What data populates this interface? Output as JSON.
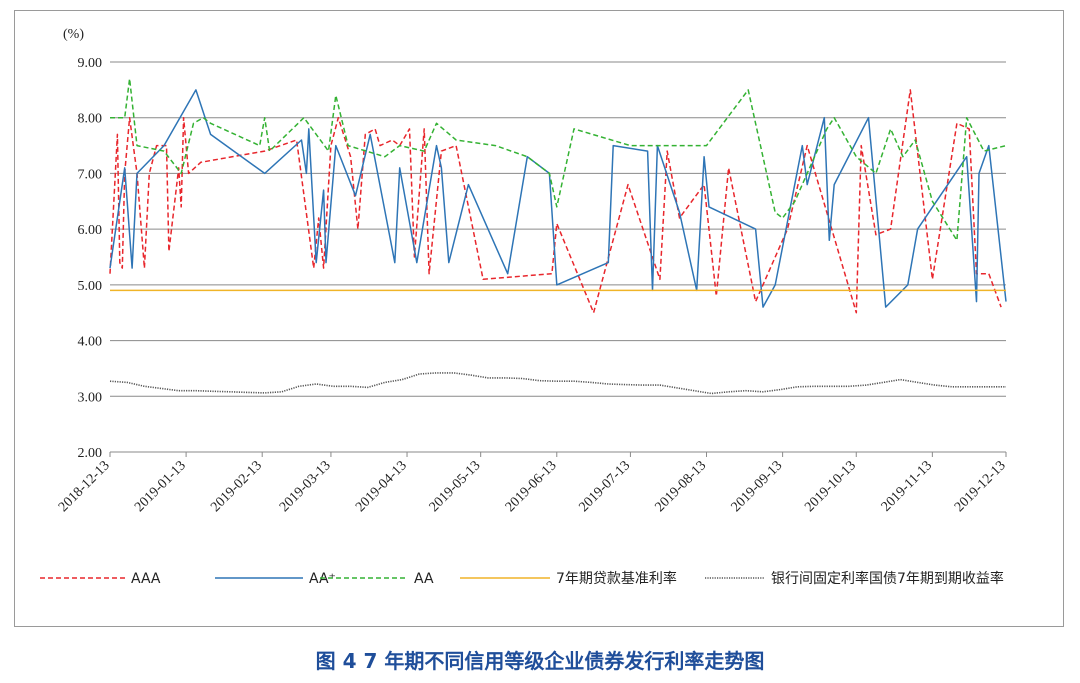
{
  "caption": "图 4  7 年期不同信用等级企业债券发行利率走势图",
  "chart_data": {
    "type": "line",
    "y_unit": "(%)",
    "ylim": [
      2.0,
      9.0
    ],
    "yticks": [
      "2.00",
      "3.00",
      "4.00",
      "5.00",
      "6.00",
      "7.00",
      "8.00",
      "9.00"
    ],
    "grid": "horizontal",
    "legend_position": "bottom",
    "xlim": [
      "2018-12-13",
      "2019-12-13"
    ],
    "xticks": [
      "2018-12-13",
      "2019-01-13",
      "2019-02-13",
      "2019-03-13",
      "2019-04-13",
      "2019-05-13",
      "2019-06-13",
      "2019-07-13",
      "2019-08-13",
      "2019-09-13",
      "2019-10-13",
      "2019-11-13",
      "2019-12-13"
    ],
    "series": [
      {
        "name": "AAA",
        "color": "#e8262c",
        "style": "dashed",
        "points": [
          [
            "2018-12-13",
            5.2
          ],
          [
            "2018-12-16",
            7.7
          ],
          [
            "2018-12-17",
            5.4
          ],
          [
            "2018-12-18",
            5.3
          ],
          [
            "2018-12-19",
            7.0
          ],
          [
            "2018-12-21",
            8.0
          ],
          [
            "2018-12-24",
            7.0
          ],
          [
            "2018-12-27",
            5.3
          ],
          [
            "2018-12-29",
            7.0
          ],
          [
            "2019-01-01",
            7.5
          ],
          [
            "2019-01-05",
            7.5
          ],
          [
            "2019-01-06",
            5.6
          ],
          [
            "2019-01-10",
            7.1
          ],
          [
            "2019-01-11",
            6.4
          ],
          [
            "2019-01-12",
            8.0
          ],
          [
            "2019-01-14",
            7.0
          ],
          [
            "2019-01-19",
            7.2
          ],
          [
            "2019-02-14",
            7.4
          ],
          [
            "2019-02-27",
            7.6
          ],
          [
            "2019-03-06",
            5.3
          ],
          [
            "2019-03-08",
            6.2
          ],
          [
            "2019-03-10",
            5.3
          ],
          [
            "2019-03-13",
            7.5
          ],
          [
            "2019-03-16",
            8.0
          ],
          [
            "2019-03-21",
            7.3
          ],
          [
            "2019-03-24",
            6.0
          ],
          [
            "2019-03-27",
            7.7
          ],
          [
            "2019-03-31",
            7.8
          ],
          [
            "2019-04-02",
            7.5
          ],
          [
            "2019-04-07",
            7.6
          ],
          [
            "2019-04-10",
            7.5
          ],
          [
            "2019-04-14",
            7.8
          ],
          [
            "2019-04-16",
            5.5
          ],
          [
            "2019-04-20",
            7.8
          ],
          [
            "2019-04-22",
            5.2
          ],
          [
            "2019-04-27",
            7.4
          ],
          [
            "2019-05-03",
            7.5
          ],
          [
            "2019-05-14",
            5.1
          ],
          [
            "2019-06-11",
            5.2
          ],
          [
            "2019-06-13",
            6.1
          ],
          [
            "2019-06-28",
            4.5
          ],
          [
            "2019-07-12",
            6.8
          ],
          [
            "2019-07-25",
            5.1
          ],
          [
            "2019-07-28",
            7.4
          ],
          [
            "2019-08-02",
            6.2
          ],
          [
            "2019-08-12",
            6.8
          ],
          [
            "2019-08-17",
            4.8
          ],
          [
            "2019-08-22",
            7.1
          ],
          [
            "2019-09-02",
            4.7
          ],
          [
            "2019-09-15",
            6.0
          ],
          [
            "2019-09-23",
            7.5
          ],
          [
            "2019-10-13",
            4.5
          ],
          [
            "2019-10-15",
            7.5
          ],
          [
            "2019-10-21",
            5.9
          ],
          [
            "2019-10-27",
            6.0
          ],
          [
            "2019-11-04",
            8.5
          ],
          [
            "2019-11-13",
            5.1
          ],
          [
            "2019-11-23",
            7.9
          ],
          [
            "2019-11-28",
            7.8
          ],
          [
            "2019-12-01",
            5.2
          ],
          [
            "2019-12-06",
            5.2
          ],
          [
            "2019-12-11",
            4.6
          ]
        ]
      },
      {
        "name": "AA⁺",
        "color": "#2e75b6",
        "style": "solid",
        "points": [
          [
            "2018-12-13",
            5.3
          ],
          [
            "2018-12-19",
            7.1
          ],
          [
            "2018-12-22",
            5.3
          ],
          [
            "2018-12-24",
            7.0
          ],
          [
            "2019-01-04",
            7.5
          ],
          [
            "2019-01-17",
            8.5
          ],
          [
            "2019-01-23",
            7.7
          ],
          [
            "2019-02-14",
            7.0
          ],
          [
            "2019-03-01",
            7.6
          ],
          [
            "2019-03-03",
            7.0
          ],
          [
            "2019-03-04",
            7.8
          ],
          [
            "2019-03-07",
            5.4
          ],
          [
            "2019-03-10",
            6.7
          ],
          [
            "2019-03-11",
            5.4
          ],
          [
            "2019-03-15",
            7.5
          ],
          [
            "2019-03-23",
            6.6
          ],
          [
            "2019-03-29",
            7.7
          ],
          [
            "2019-04-08",
            5.4
          ],
          [
            "2019-04-10",
            7.1
          ],
          [
            "2019-04-17",
            5.4
          ],
          [
            "2019-04-25",
            7.5
          ],
          [
            "2019-04-27",
            7.1
          ],
          [
            "2019-04-30",
            5.4
          ],
          [
            "2019-05-08",
            6.8
          ],
          [
            "2019-05-24",
            5.2
          ],
          [
            "2019-06-01",
            7.3
          ],
          [
            "2019-06-10",
            7.0
          ],
          [
            "2019-06-13",
            5.0
          ],
          [
            "2019-07-04",
            5.4
          ],
          [
            "2019-07-06",
            7.5
          ],
          [
            "2019-07-20",
            7.4
          ],
          [
            "2019-07-22",
            4.9
          ],
          [
            "2019-07-24",
            7.5
          ],
          [
            "2019-08-02",
            6.3
          ],
          [
            "2019-08-09",
            4.9
          ],
          [
            "2019-08-12",
            7.3
          ],
          [
            "2019-08-14",
            6.4
          ],
          [
            "2019-09-02",
            6.0
          ],
          [
            "2019-09-05",
            4.6
          ],
          [
            "2019-09-10",
            5.0
          ],
          [
            "2019-09-21",
            7.5
          ],
          [
            "2019-09-23",
            6.8
          ],
          [
            "2019-09-30",
            8.0
          ],
          [
            "2019-10-02",
            5.8
          ],
          [
            "2019-10-04",
            6.8
          ],
          [
            "2019-10-18",
            8.0
          ],
          [
            "2019-10-25",
            4.6
          ],
          [
            "2019-11-03",
            5.0
          ],
          [
            "2019-11-07",
            6.0
          ],
          [
            "2019-11-27",
            7.3
          ],
          [
            "2019-12-01",
            4.7
          ],
          [
            "2019-12-02",
            7.0
          ],
          [
            "2019-12-06",
            7.5
          ],
          [
            "2019-12-13",
            4.7
          ]
        ]
      },
      {
        "name": "AA",
        "color": "#34b233",
        "style": "dashed",
        "points": [
          [
            "2018-12-13",
            8.0
          ],
          [
            "2018-12-19",
            8.0
          ],
          [
            "2018-12-21",
            8.7
          ],
          [
            "2018-12-24",
            7.5
          ],
          [
            "2019-01-04",
            7.4
          ],
          [
            "2019-01-11",
            7.0
          ],
          [
            "2019-01-16",
            7.9
          ],
          [
            "2019-01-20",
            8.0
          ],
          [
            "2019-01-23",
            7.9
          ],
          [
            "2019-02-12",
            7.5
          ],
          [
            "2019-02-14",
            8.0
          ],
          [
            "2019-02-16",
            7.4
          ],
          [
            "2019-03-02",
            8.0
          ],
          [
            "2019-03-12",
            7.4
          ],
          [
            "2019-03-15",
            8.4
          ],
          [
            "2019-03-20",
            7.5
          ],
          [
            "2019-04-04",
            7.3
          ],
          [
            "2019-04-10",
            7.5
          ],
          [
            "2019-04-20",
            7.4
          ],
          [
            "2019-04-25",
            7.9
          ],
          [
            "2019-05-03",
            7.6
          ],
          [
            "2019-05-19",
            7.5
          ],
          [
            "2019-06-01",
            7.3
          ],
          [
            "2019-06-10",
            7.0
          ],
          [
            "2019-06-13",
            6.4
          ],
          [
            "2019-06-20",
            7.8
          ],
          [
            "2019-07-13",
            7.5
          ],
          [
            "2019-08-13",
            7.5
          ],
          [
            "2019-08-30",
            8.5
          ],
          [
            "2019-09-10",
            6.3
          ],
          [
            "2019-09-13",
            6.2
          ],
          [
            "2019-09-18",
            6.5
          ],
          [
            "2019-10-01",
            7.8
          ],
          [
            "2019-10-04",
            8.0
          ],
          [
            "2019-10-13",
            7.3
          ],
          [
            "2019-10-21",
            7.0
          ],
          [
            "2019-10-27",
            7.8
          ],
          [
            "2019-11-01",
            7.3
          ],
          [
            "2019-11-06",
            7.6
          ],
          [
            "2019-11-13",
            6.5
          ],
          [
            "2019-11-23",
            5.8
          ],
          [
            "2019-11-27",
            8.0
          ],
          [
            "2019-12-04",
            7.4
          ],
          [
            "2019-12-13",
            7.5
          ]
        ]
      },
      {
        "name": "7年期贷款基准利率",
        "color": "#f0b428",
        "style": "solid",
        "points": [
          [
            "2018-12-13",
            4.9
          ],
          [
            "2019-12-13",
            4.9
          ]
        ]
      },
      {
        "name": "银行间固定利率国债7年期到期收益率",
        "color": "#555555",
        "style": "dotted",
        "points": [
          [
            "2018-12-13",
            3.27
          ],
          [
            "2018-12-20",
            3.25
          ],
          [
            "2018-12-27",
            3.18
          ],
          [
            "2019-01-03",
            3.14
          ],
          [
            "2019-01-10",
            3.1
          ],
          [
            "2019-01-17",
            3.1
          ],
          [
            "2019-01-24",
            3.09
          ],
          [
            "2019-01-31",
            3.08
          ],
          [
            "2019-02-07",
            3.07
          ],
          [
            "2019-02-14",
            3.06
          ],
          [
            "2019-02-21",
            3.08
          ],
          [
            "2019-02-28",
            3.18
          ],
          [
            "2019-03-07",
            3.22
          ],
          [
            "2019-03-14",
            3.18
          ],
          [
            "2019-03-21",
            3.18
          ],
          [
            "2019-03-28",
            3.16
          ],
          [
            "2019-04-04",
            3.25
          ],
          [
            "2019-04-11",
            3.3
          ],
          [
            "2019-04-18",
            3.4
          ],
          [
            "2019-04-25",
            3.42
          ],
          [
            "2019-05-02",
            3.42
          ],
          [
            "2019-05-09",
            3.38
          ],
          [
            "2019-05-16",
            3.33
          ],
          [
            "2019-05-23",
            3.33
          ],
          [
            "2019-05-30",
            3.32
          ],
          [
            "2019-06-06",
            3.28
          ],
          [
            "2019-06-13",
            3.27
          ],
          [
            "2019-06-20",
            3.27
          ],
          [
            "2019-06-27",
            3.25
          ],
          [
            "2019-07-04",
            3.22
          ],
          [
            "2019-07-11",
            3.21
          ],
          [
            "2019-07-18",
            3.2
          ],
          [
            "2019-07-25",
            3.2
          ],
          [
            "2019-08-01",
            3.15
          ],
          [
            "2019-08-08",
            3.1
          ],
          [
            "2019-08-15",
            3.05
          ],
          [
            "2019-08-22",
            3.08
          ],
          [
            "2019-08-29",
            3.1
          ],
          [
            "2019-09-05",
            3.08
          ],
          [
            "2019-09-12",
            3.12
          ],
          [
            "2019-09-19",
            3.17
          ],
          [
            "2019-09-26",
            3.18
          ],
          [
            "2019-10-03",
            3.18
          ],
          [
            "2019-10-10",
            3.18
          ],
          [
            "2019-10-17",
            3.2
          ],
          [
            "2019-10-24",
            3.25
          ],
          [
            "2019-10-31",
            3.3
          ],
          [
            "2019-11-07",
            3.25
          ],
          [
            "2019-11-14",
            3.2
          ],
          [
            "2019-11-21",
            3.17
          ],
          [
            "2019-11-28",
            3.17
          ],
          [
            "2019-12-05",
            3.17
          ],
          [
            "2019-12-13",
            3.17
          ]
        ]
      }
    ]
  }
}
